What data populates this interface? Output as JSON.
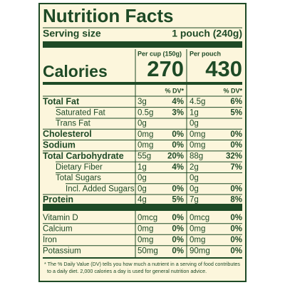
{
  "title": "Nutrition Facts",
  "serving": {
    "label": "Serving size",
    "value": "1 pouch (240g)"
  },
  "columns": [
    "Per cup (150g)",
    "Per pouch"
  ],
  "calories": {
    "label": "Calories",
    "values": [
      "270",
      "430"
    ]
  },
  "dv_header": [
    "% DV*",
    "% DV*"
  ],
  "rows": [
    [
      "Total Fat",
      "3g",
      "4%",
      "4.5g",
      "6%"
    ],
    [
      "Saturated Fat",
      "0.5g",
      "3%",
      "1g",
      "5%"
    ],
    [
      "Trans Fat",
      "0g",
      null,
      "0g",
      null
    ],
    [
      "Cholesterol",
      "0mg",
      "0%",
      "0mg",
      "0%"
    ],
    [
      "Sodium",
      "0mg",
      "0%",
      "0mg",
      "0%"
    ],
    [
      "Total Carbohydrate",
      "55g",
      "20%",
      "88g",
      "32%"
    ],
    [
      "Dietary Fiber",
      "1g",
      "4%",
      "2g",
      "7%"
    ],
    [
      "Total Sugars",
      "0g",
      null,
      "0g",
      null
    ],
    [
      "Incl. Added Sugars",
      "0g",
      "0%",
      "0g",
      "0%"
    ],
    [
      "Protein",
      "4g",
      "5%",
      "7g",
      "8%"
    ]
  ],
  "vitamins": [
    [
      "Vitamin D",
      "0mcg",
      "0%",
      "0mcg",
      "0%"
    ],
    [
      "Calcium",
      "0mg",
      "0%",
      "0mg",
      "0%"
    ],
    [
      "Iron",
      "0mg",
      "0%",
      "0mg",
      "0%"
    ],
    [
      "Potassium",
      "50mg",
      "0%",
      "90mg",
      "0%"
    ]
  ],
  "footnote": [
    "* The % Daily Value (DV) tells you how much a nutrient in a serving of food contributes",
    "to a daily diet. 2,000 calories a day is used for general nutrition advice."
  ]
}
